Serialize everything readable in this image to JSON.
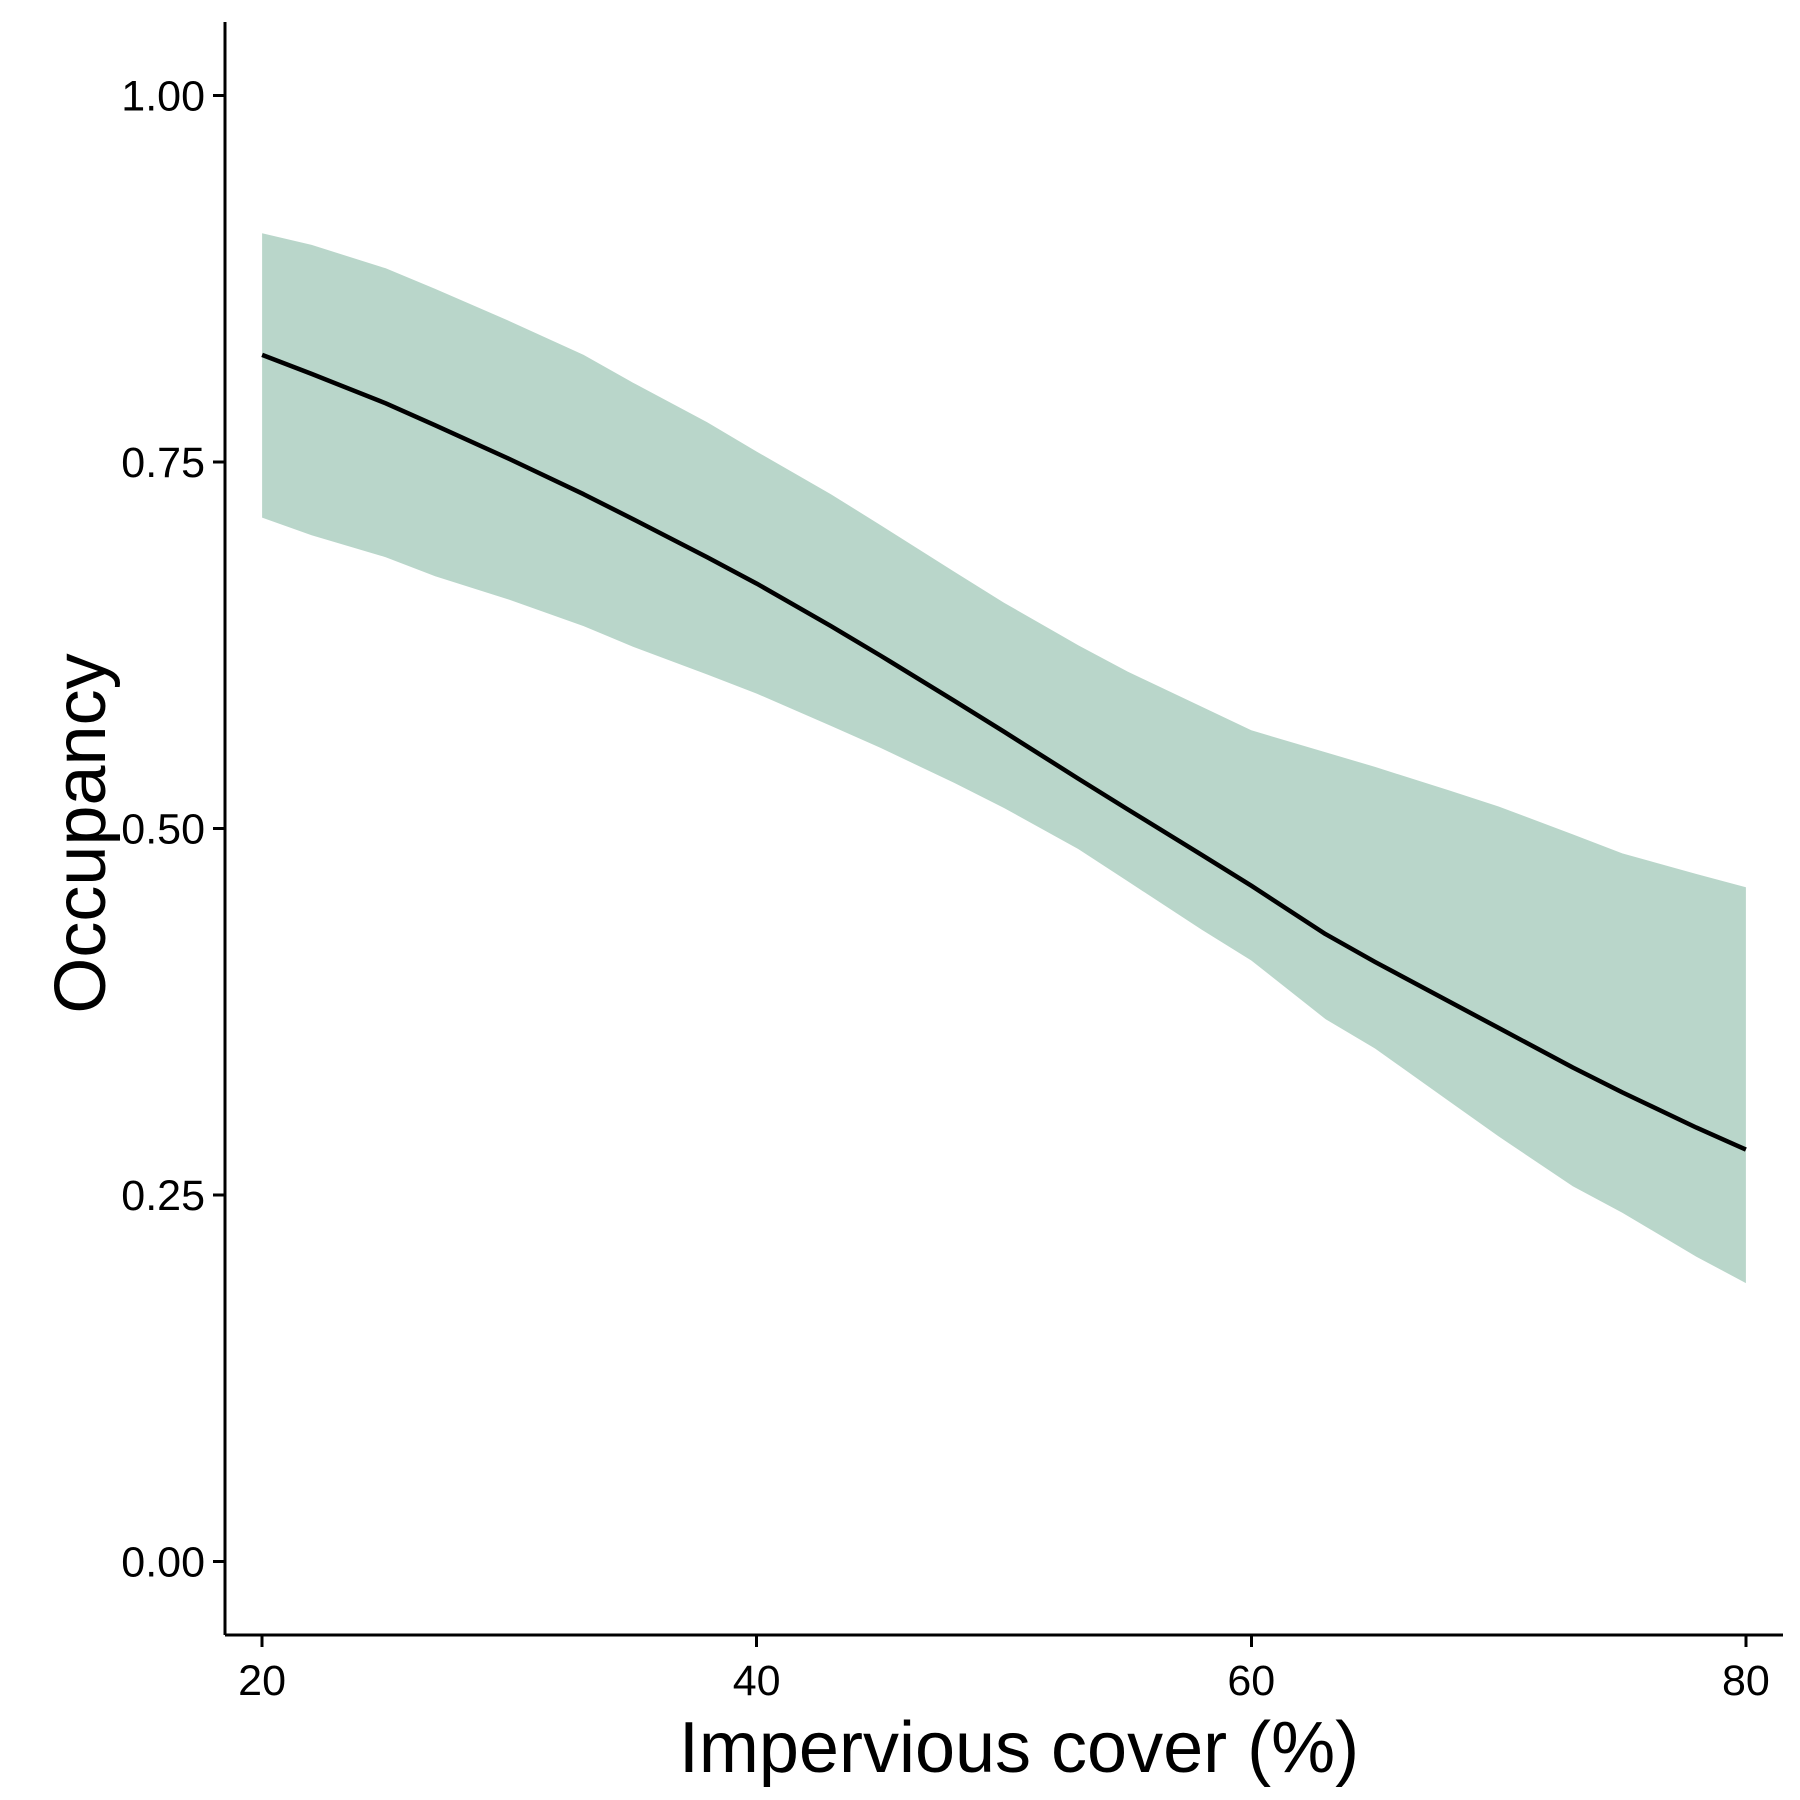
{
  "chart_data": {
    "type": "line",
    "xlabel": "Impervious cover (%)",
    "ylabel": "Occupancy",
    "xlim": [
      18.5,
      81.5
    ],
    "ylim": [
      -0.05,
      1.05
    ],
    "x_ticks": [
      20,
      40,
      60,
      80
    ],
    "x_tick_labels": [
      "20",
      "40",
      "60",
      "80"
    ],
    "y_ticks": [
      0,
      0.25,
      0.5,
      0.75,
      1.0
    ],
    "y_tick_labels": [
      "0.00",
      "0.25",
      "0.50",
      "0.75",
      "1.00"
    ],
    "grid": false,
    "legend": "none",
    "colors": {
      "ribbon": "#b9d6ca",
      "line": "#000000",
      "axis": "#000000"
    },
    "series": [
      {
        "x": [
          20,
          22,
          25,
          27,
          30,
          33,
          35,
          38,
          40,
          43,
          45,
          48,
          50,
          53,
          55,
          58,
          60,
          63,
          65,
          68,
          70,
          73,
          75,
          78,
          80
        ],
        "y": [
          0.823,
          0.81,
          0.79,
          0.775,
          0.752,
          0.728,
          0.711,
          0.685,
          0.667,
          0.638,
          0.618,
          0.587,
          0.566,
          0.534,
          0.513,
          0.482,
          0.461,
          0.428,
          0.409,
          0.382,
          0.364,
          0.337,
          0.32,
          0.296,
          0.281
        ],
        "lower": [
          0.712,
          0.7,
          0.685,
          0.672,
          0.656,
          0.638,
          0.624,
          0.605,
          0.592,
          0.57,
          0.555,
          0.531,
          0.514,
          0.486,
          0.464,
          0.431,
          0.41,
          0.37,
          0.35,
          0.314,
          0.29,
          0.256,
          0.238,
          0.208,
          0.19
        ],
        "upper": [
          0.906,
          0.898,
          0.882,
          0.868,
          0.846,
          0.823,
          0.804,
          0.777,
          0.757,
          0.728,
          0.707,
          0.675,
          0.654,
          0.625,
          0.607,
          0.583,
          0.567,
          0.552,
          0.542,
          0.526,
          0.515,
          0.496,
          0.483,
          0.469,
          0.46
        ]
      }
    ]
  }
}
